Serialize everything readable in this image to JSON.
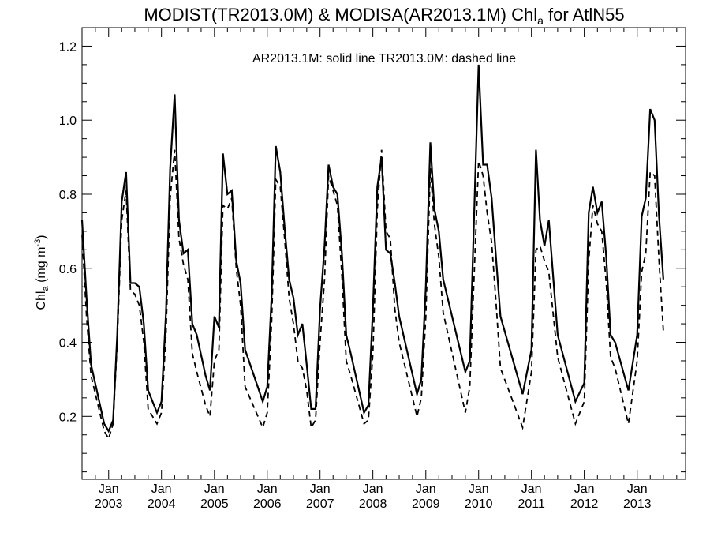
{
  "chart_data": {
    "type": "line",
    "title": {
      "prefix": "MODIST(TR2013.0M) & MODISA(AR2013.1M)  Chl",
      "subscript": "a",
      "suffix": " for AtlN55"
    },
    "annotation": "AR2013.1M: solid line   TR2013.0M: dashed line",
    "ylabel": {
      "prefix": "Chl",
      "subscript": "a",
      "middle": " (mg m",
      "superscript": "-3",
      "suffix": ")"
    },
    "xlim": [
      "2002-07-01",
      "2013-12-01"
    ],
    "ylim": [
      0.03,
      1.25
    ],
    "y_ticks": [
      0.2,
      0.4,
      0.6,
      0.8,
      1.0,
      1.2
    ],
    "y_tick_labels": [
      "0.2",
      "0.4",
      "0.6",
      "0.8",
      "1.0",
      "1.2"
    ],
    "x_ticks": [
      "2003-01-01",
      "2004-01-01",
      "2005-01-01",
      "2006-01-01",
      "2007-01-01",
      "2008-01-01",
      "2009-01-01",
      "2010-01-01",
      "2011-01-01",
      "2012-01-01",
      "2013-01-01"
    ],
    "x_tick_month_label": "Jan",
    "x_tick_year_labels": [
      "2003",
      "2004",
      "2005",
      "2006",
      "2007",
      "2008",
      "2009",
      "2010",
      "2011",
      "2012",
      "2013"
    ],
    "series": [
      {
        "name": "AR2013.1M",
        "style": "solid",
        "color": "#000000",
        "points": [
          [
            "2002-07-01",
            0.73
          ],
          [
            "2002-08-01",
            0.52
          ],
          [
            "2002-09-01",
            0.34
          ],
          [
            "2002-12-01",
            0.18
          ],
          [
            "2003-01-01",
            0.16
          ],
          [
            "2003-02-01",
            0.19
          ],
          [
            "2003-03-01",
            0.42
          ],
          [
            "2003-04-01",
            0.78
          ],
          [
            "2003-05-01",
            0.86
          ],
          [
            "2003-06-01",
            0.56
          ],
          [
            "2003-07-01",
            0.56
          ],
          [
            "2003-08-01",
            0.55
          ],
          [
            "2003-09-01",
            0.45
          ],
          [
            "2003-10-01",
            0.27
          ],
          [
            "2003-12-01",
            0.21
          ],
          [
            "2004-01-01",
            0.24
          ],
          [
            "2004-02-01",
            0.48
          ],
          [
            "2004-03-01",
            0.87
          ],
          [
            "2004-04-01",
            1.07
          ],
          [
            "2004-05-01",
            0.73
          ],
          [
            "2004-06-01",
            0.64
          ],
          [
            "2004-07-01",
            0.65
          ],
          [
            "2004-08-01",
            0.45
          ],
          [
            "2004-09-01",
            0.42
          ],
          [
            "2004-11-01",
            0.31
          ],
          [
            "2004-12-01",
            0.27
          ],
          [
            "2005-01-01",
            0.47
          ],
          [
            "2005-02-01",
            0.44
          ],
          [
            "2005-03-01",
            0.91
          ],
          [
            "2005-04-01",
            0.8
          ],
          [
            "2005-05-01",
            0.81
          ],
          [
            "2005-06-01",
            0.62
          ],
          [
            "2005-07-01",
            0.56
          ],
          [
            "2005-08-01",
            0.38
          ],
          [
            "2005-12-01",
            0.24
          ],
          [
            "2006-01-01",
            0.28
          ],
          [
            "2006-02-01",
            0.53
          ],
          [
            "2006-03-01",
            0.93
          ],
          [
            "2006-04-01",
            0.86
          ],
          [
            "2006-05-01",
            0.71
          ],
          [
            "2006-06-01",
            0.57
          ],
          [
            "2006-07-01",
            0.52
          ],
          [
            "2006-08-01",
            0.42
          ],
          [
            "2006-09-01",
            0.45
          ],
          [
            "2006-10-01",
            0.34
          ],
          [
            "2006-11-01",
            0.22
          ],
          [
            "2006-12-01",
            0.22
          ],
          [
            "2007-01-01",
            0.49
          ],
          [
            "2007-02-01",
            0.66
          ],
          [
            "2007-03-01",
            0.88
          ],
          [
            "2007-04-01",
            0.82
          ],
          [
            "2007-05-01",
            0.8
          ],
          [
            "2007-06-01",
            0.64
          ],
          [
            "2007-07-01",
            0.42
          ],
          [
            "2007-08-01",
            0.37
          ],
          [
            "2007-11-01",
            0.21
          ],
          [
            "2007-12-01",
            0.23
          ],
          [
            "2008-01-01",
            0.49
          ],
          [
            "2008-02-01",
            0.82
          ],
          [
            "2008-03-01",
            0.9
          ],
          [
            "2008-04-01",
            0.65
          ],
          [
            "2008-05-01",
            0.64
          ],
          [
            "2008-06-01",
            0.56
          ],
          [
            "2008-07-01",
            0.47
          ],
          [
            "2008-11-01",
            0.26
          ],
          [
            "2008-12-01",
            0.3
          ],
          [
            "2009-01-01",
            0.55
          ],
          [
            "2009-02-01",
            0.94
          ],
          [
            "2009-03-01",
            0.76
          ],
          [
            "2009-04-01",
            0.7
          ],
          [
            "2009-05-01",
            0.57
          ],
          [
            "2009-10-01",
            0.32
          ],
          [
            "2009-11-01",
            0.35
          ],
          [
            "2010-01-01",
            1.15
          ],
          [
            "2010-02-01",
            0.88
          ],
          [
            "2010-03-01",
            0.88
          ],
          [
            "2010-04-01",
            0.79
          ],
          [
            "2010-05-01",
            0.63
          ],
          [
            "2010-06-01",
            0.47
          ],
          [
            "2010-11-01",
            0.26
          ],
          [
            "2011-01-01",
            0.38
          ],
          [
            "2011-02-01",
            0.92
          ],
          [
            "2011-03-01",
            0.73
          ],
          [
            "2011-04-01",
            0.66
          ],
          [
            "2011-05-01",
            0.73
          ],
          [
            "2011-07-01",
            0.42
          ],
          [
            "2011-11-01",
            0.24
          ],
          [
            "2012-01-01",
            0.29
          ],
          [
            "2012-02-01",
            0.75
          ],
          [
            "2012-03-01",
            0.82
          ],
          [
            "2012-04-01",
            0.75
          ],
          [
            "2012-05-01",
            0.78
          ],
          [
            "2012-06-01",
            0.63
          ],
          [
            "2012-07-01",
            0.42
          ],
          [
            "2012-08-01",
            0.4
          ],
          [
            "2012-11-01",
            0.27
          ],
          [
            "2013-01-01",
            0.42
          ],
          [
            "2013-02-01",
            0.74
          ],
          [
            "2013-03-01",
            0.79
          ],
          [
            "2013-04-01",
            1.03
          ],
          [
            "2013-05-01",
            1.0
          ],
          [
            "2013-06-01",
            0.74
          ],
          [
            "2013-07-01",
            0.57
          ]
        ]
      },
      {
        "name": "TR2013.0M",
        "style": "dashed",
        "color": "#000000",
        "points": [
          [
            "2002-07-01",
            0.69
          ],
          [
            "2002-08-01",
            0.47
          ],
          [
            "2002-09-01",
            0.31
          ],
          [
            "2002-12-01",
            0.16
          ],
          [
            "2003-01-01",
            0.14
          ],
          [
            "2003-02-01",
            0.18
          ],
          [
            "2003-03-01",
            0.4
          ],
          [
            "2003-04-01",
            0.73
          ],
          [
            "2003-05-01",
            0.81
          ],
          [
            "2003-06-01",
            0.54
          ],
          [
            "2003-07-01",
            0.53
          ],
          [
            "2003-08-01",
            0.5
          ],
          [
            "2003-09-01",
            0.4
          ],
          [
            "2003-10-01",
            0.22
          ],
          [
            "2003-12-01",
            0.18
          ],
          [
            "2004-01-01",
            0.21
          ],
          [
            "2004-02-01",
            0.42
          ],
          [
            "2004-03-01",
            0.79
          ],
          [
            "2004-04-01",
            0.92
          ],
          [
            "2004-05-01",
            0.68
          ],
          [
            "2004-06-01",
            0.61
          ],
          [
            "2004-07-01",
            0.57
          ],
          [
            "2004-08-01",
            0.37
          ],
          [
            "2004-09-01",
            0.32
          ],
          [
            "2004-11-01",
            0.23
          ],
          [
            "2004-12-01",
            0.2
          ],
          [
            "2005-01-01",
            0.35
          ],
          [
            "2005-02-01",
            0.38
          ],
          [
            "2005-03-01",
            0.77
          ],
          [
            "2005-04-01",
            0.76
          ],
          [
            "2005-05-01",
            0.79
          ],
          [
            "2005-06-01",
            0.6
          ],
          [
            "2005-07-01",
            0.5
          ],
          [
            "2005-08-01",
            0.28
          ],
          [
            "2005-12-01",
            0.17
          ],
          [
            "2006-01-01",
            0.21
          ],
          [
            "2006-02-01",
            0.46
          ],
          [
            "2006-03-01",
            0.84
          ],
          [
            "2006-04-01",
            0.82
          ],
          [
            "2006-05-01",
            0.68
          ],
          [
            "2006-06-01",
            0.52
          ],
          [
            "2006-07-01",
            0.45
          ],
          [
            "2006-08-01",
            0.35
          ],
          [
            "2006-09-01",
            0.33
          ],
          [
            "2006-10-01",
            0.27
          ],
          [
            "2006-11-01",
            0.17
          ],
          [
            "2006-12-01",
            0.19
          ],
          [
            "2007-01-01",
            0.4
          ],
          [
            "2007-02-01",
            0.57
          ],
          [
            "2007-03-01",
            0.85
          ],
          [
            "2007-04-01",
            0.81
          ],
          [
            "2007-05-01",
            0.77
          ],
          [
            "2007-06-01",
            0.58
          ],
          [
            "2007-07-01",
            0.35
          ],
          [
            "2007-08-01",
            0.31
          ],
          [
            "2007-11-01",
            0.18
          ],
          [
            "2007-12-01",
            0.19
          ],
          [
            "2008-01-01",
            0.37
          ],
          [
            "2008-02-01",
            0.76
          ],
          [
            "2008-03-01",
            0.92
          ],
          [
            "2008-04-01",
            0.7
          ],
          [
            "2008-05-01",
            0.68
          ],
          [
            "2008-06-01",
            0.49
          ],
          [
            "2008-07-01",
            0.4
          ],
          [
            "2008-11-01",
            0.2
          ],
          [
            "2008-12-01",
            0.25
          ],
          [
            "2009-01-01",
            0.47
          ],
          [
            "2009-02-01",
            0.87
          ],
          [
            "2009-03-01",
            0.72
          ],
          [
            "2009-04-01",
            0.63
          ],
          [
            "2009-05-01",
            0.48
          ],
          [
            "2009-10-01",
            0.21
          ],
          [
            "2009-11-01",
            0.28
          ],
          [
            "2010-01-01",
            0.89
          ],
          [
            "2010-02-01",
            0.85
          ],
          [
            "2010-03-01",
            0.75
          ],
          [
            "2010-04-01",
            0.67
          ],
          [
            "2010-05-01",
            0.51
          ],
          [
            "2010-06-01",
            0.33
          ],
          [
            "2010-11-01",
            0.17
          ],
          [
            "2011-01-01",
            0.32
          ],
          [
            "2011-02-01",
            0.65
          ],
          [
            "2011-03-01",
            0.66
          ],
          [
            "2011-04-01",
            0.62
          ],
          [
            "2011-05-01",
            0.59
          ],
          [
            "2011-07-01",
            0.36
          ],
          [
            "2011-11-01",
            0.18
          ],
          [
            "2012-01-01",
            0.24
          ],
          [
            "2012-02-01",
            0.62
          ],
          [
            "2012-03-01",
            0.77
          ],
          [
            "2012-04-01",
            0.72
          ],
          [
            "2012-05-01",
            0.7
          ],
          [
            "2012-06-01",
            0.56
          ],
          [
            "2012-07-01",
            0.36
          ],
          [
            "2012-08-01",
            0.33
          ],
          [
            "2012-11-01",
            0.18
          ],
          [
            "2013-01-01",
            0.35
          ],
          [
            "2013-02-01",
            0.59
          ],
          [
            "2013-03-01",
            0.64
          ],
          [
            "2013-04-01",
            0.86
          ],
          [
            "2013-05-01",
            0.85
          ],
          [
            "2013-06-01",
            0.62
          ],
          [
            "2013-07-01",
            0.43
          ]
        ]
      }
    ],
    "grid": false,
    "legend": "none"
  }
}
